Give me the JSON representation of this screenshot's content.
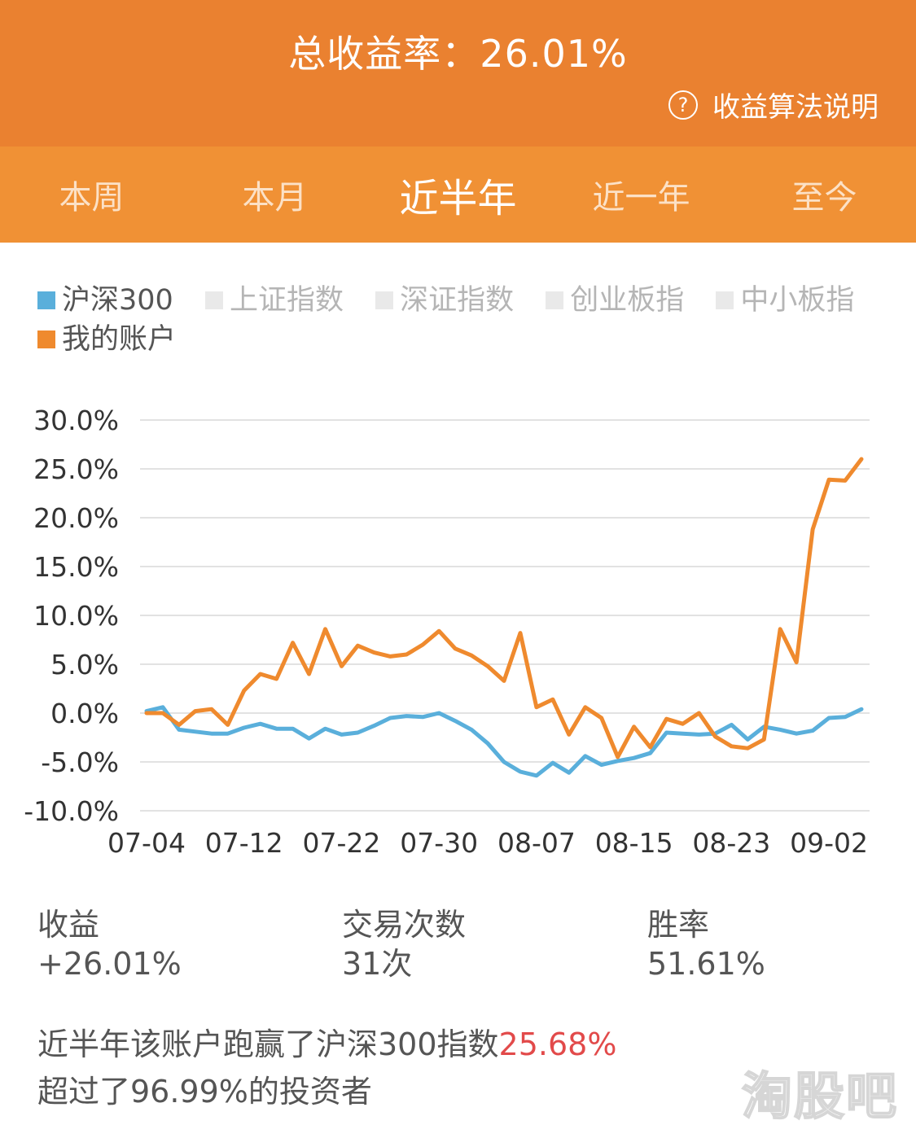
{
  "header": {
    "total_label": "总收益率：26.01%",
    "help_icon": "question-circle-icon",
    "help_label": "收益算法说明"
  },
  "tabs": [
    {
      "label": "本周",
      "active": false
    },
    {
      "label": "本月",
      "active": false
    },
    {
      "label": "近半年",
      "active": true
    },
    {
      "label": "近一年",
      "active": false
    },
    {
      "label": "至今",
      "active": false
    }
  ],
  "colors": {
    "header_bg": "#ea8130",
    "tabs_bg": "#f09135",
    "hs300": "#5aafdb",
    "account": "#ef8a2e",
    "highlight": "#e24a4a"
  },
  "chart_data": {
    "type": "line",
    "ytick_labels": [
      "30.0%",
      "25.0%",
      "20.0%",
      "15.0%",
      "10.0%",
      "5.0%",
      "0.0%",
      "-5.0%",
      "-10.0%"
    ],
    "ylim": [
      -10,
      30
    ],
    "y_ticks": [
      30,
      25,
      20,
      15,
      10,
      5,
      0,
      -5,
      -10
    ],
    "xtick_labels": [
      "07-04",
      "07-12",
      "07-22",
      "07-30",
      "08-07",
      "08-15",
      "08-23",
      "09-02"
    ],
    "grid": true,
    "legend_position": "top-left",
    "series": [
      {
        "name": "沪深300",
        "color": "#5aafdb",
        "visible": true,
        "values": [
          0.2,
          0.6,
          -1.7,
          -1.9,
          -2.1,
          -2.1,
          -1.5,
          -1.1,
          -1.6,
          -1.6,
          -2.6,
          -1.6,
          -2.2,
          -2.0,
          -1.3,
          -0.5,
          -0.3,
          -0.4,
          0.0,
          -0.8,
          -1.7,
          -3.1,
          -5.0,
          -6.0,
          -6.4,
          -5.1,
          -6.1,
          -4.4,
          -5.3,
          -4.9,
          -4.6,
          -4.1,
          -2.0,
          -2.1,
          -2.2,
          -2.1,
          -1.2,
          -2.7,
          -1.4,
          -1.7,
          -2.1,
          -1.8,
          -0.5,
          -0.4,
          0.4
        ]
      },
      {
        "name": "上证指数",
        "color": "#e9e9e9",
        "visible": false,
        "values": []
      },
      {
        "name": "深证指数",
        "color": "#e9e9e9",
        "visible": false,
        "values": []
      },
      {
        "name": "创业板指",
        "color": "#e9e9e9",
        "visible": false,
        "values": []
      },
      {
        "name": "中小板指",
        "color": "#e9e9e9",
        "visible": false,
        "values": []
      },
      {
        "name": "我的账户",
        "color": "#ef8a2e",
        "visible": true,
        "values": [
          0.0,
          0.0,
          -1.2,
          0.2,
          0.4,
          -1.2,
          2.3,
          4.0,
          3.5,
          7.2,
          4.0,
          8.6,
          4.8,
          6.9,
          6.2,
          5.8,
          6.0,
          7.0,
          8.4,
          6.6,
          5.9,
          4.8,
          3.3,
          8.2,
          0.6,
          1.4,
          -2.2,
          0.6,
          -0.5,
          -4.5,
          -1.4,
          -3.5,
          -0.6,
          -1.1,
          0.0,
          -2.4,
          -3.4,
          -3.6,
          -2.7,
          8.6,
          5.2,
          18.8,
          23.9,
          23.8,
          26.0
        ]
      }
    ]
  },
  "stats": [
    {
      "label": "收益",
      "value": "+26.01%"
    },
    {
      "label": "交易次数",
      "value": "31次"
    },
    {
      "label": "胜率",
      "value": "51.61%"
    }
  ],
  "summary": {
    "line1_prefix": "近半年该账户跑赢了沪深300指数",
    "line1_value": "25.68%",
    "line2": "超过了96.99%的投资者"
  },
  "watermark": "淘股吧"
}
